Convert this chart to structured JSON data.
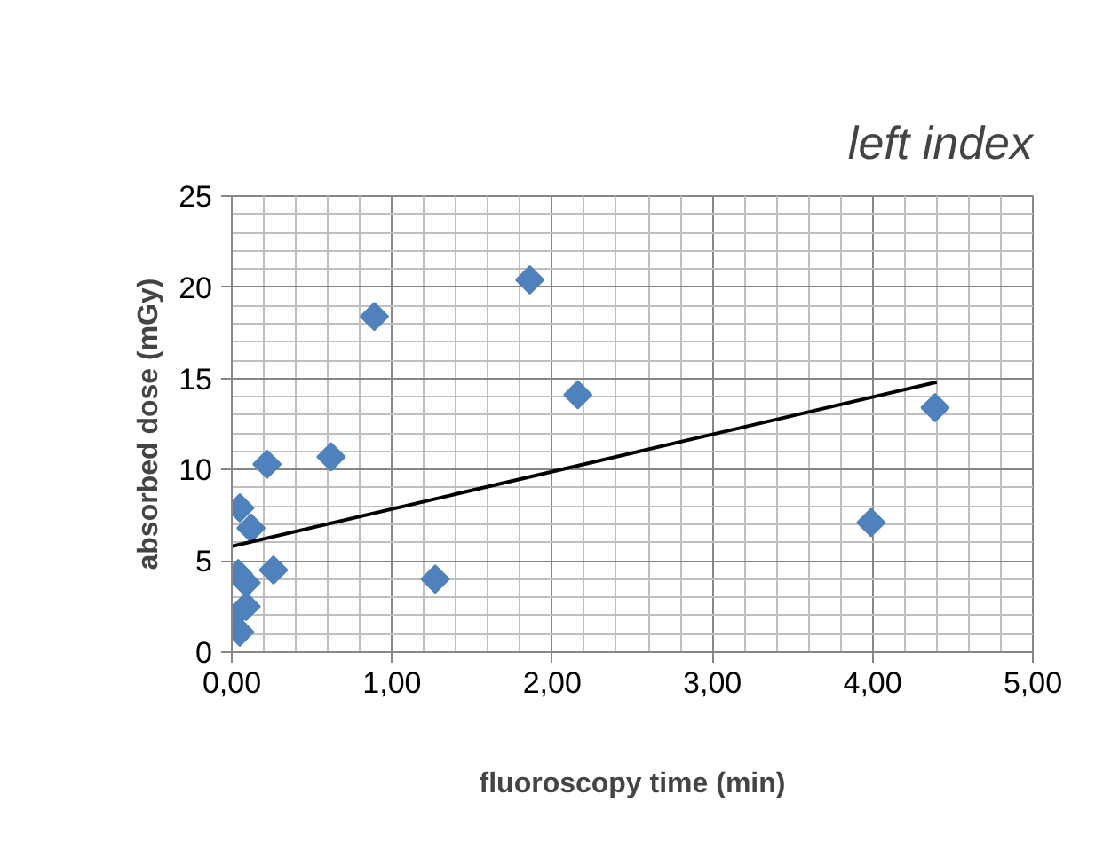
{
  "chart_data": {
    "type": "scatter",
    "title": "left index",
    "xlabel": "fluoroscopy time (min)",
    "ylabel": "absorbed dose (mGy)",
    "series": [
      {
        "color": "#4f81bd",
        "marker": "diamond",
        "x": [
          1.86,
          0.89,
          2.16,
          0.62,
          0.22,
          0.05,
          0.12,
          0.26,
          1.27,
          0.04,
          0.09,
          0.09,
          0.0,
          0.05,
          4.39,
          3.99
        ],
        "values": [
          20.4,
          18.4,
          14.1,
          10.7,
          10.3,
          7.9,
          6.8,
          4.5,
          4.0,
          4.3,
          3.8,
          2.5,
          1.9,
          1.1,
          13.4,
          7.1
        ]
      },
      {
        "type": "line",
        "color": "#000000",
        "marker": "none",
        "x": [
          0.0,
          4.4
        ],
        "values": [
          5.8,
          14.8
        ]
      }
    ],
    "xlim": [
      0,
      5
    ],
    "ylim": [
      0,
      25
    ],
    "xticks": [
      {
        "value": 0,
        "label": "0,00"
      },
      {
        "value": 1,
        "label": "1,00"
      },
      {
        "value": 2,
        "label": "2,00"
      },
      {
        "value": 3,
        "label": "3,00"
      },
      {
        "value": 4,
        "label": "4,00"
      },
      {
        "value": 5,
        "label": "5,00"
      }
    ],
    "yticks": [
      0,
      5,
      10,
      15,
      20,
      25
    ],
    "grid": true
  }
}
